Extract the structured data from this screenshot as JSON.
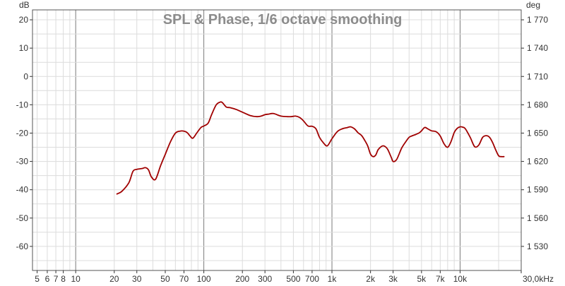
{
  "chart_data": {
    "type": "line",
    "title": "SPL & Phase, 1/6 octave smoothing",
    "y_unit_left": "dB",
    "y_unit_right": "deg",
    "x_scale": "log",
    "xlim": [
      4.6,
      30000
    ],
    "ylim": [
      -68.5,
      23.5
    ],
    "right_ylim": [
      1515.5,
      1791.5
    ],
    "x_ticks": [
      {
        "value": 5,
        "label": "5"
      },
      {
        "value": 6,
        "label": "6"
      },
      {
        "value": 7,
        "label": "7"
      },
      {
        "value": 8,
        "label": "8"
      },
      {
        "value": 10,
        "label": "10"
      },
      {
        "value": 20,
        "label": "20"
      },
      {
        "value": 30,
        "label": "30"
      },
      {
        "value": 50,
        "label": "50"
      },
      {
        "value": 70,
        "label": "70"
      },
      {
        "value": 100,
        "label": "100"
      },
      {
        "value": 200,
        "label": "200"
      },
      {
        "value": 300,
        "label": "300"
      },
      {
        "value": 500,
        "label": "500"
      },
      {
        "value": 700,
        "label": "700"
      },
      {
        "value": 1000,
        "label": "1k"
      },
      {
        "value": 2000,
        "label": "2k"
      },
      {
        "value": 3000,
        "label": "3k"
      },
      {
        "value": 5000,
        "label": "5k"
      },
      {
        "value": 7000,
        "label": "7k"
      },
      {
        "value": 10000,
        "label": "10k"
      },
      {
        "value": 30000,
        "label": "30,0kHz"
      }
    ],
    "y_ticks_left": [
      "20",
      "10",
      "0",
      "-10",
      "-20",
      "-30",
      "-40",
      "-50",
      "-60"
    ],
    "y_ticks_right": [
      "1 770",
      "1 740",
      "1 710",
      "1 680",
      "1 650",
      "1 620",
      "1 590",
      "1 560",
      "1 530"
    ],
    "grid": true,
    "colors": {
      "series": "#a00000",
      "grid": "#dcdcdc",
      "major_grid": "#7a7a7a",
      "axis": "#333333",
      "title": "#8c8c8c"
    },
    "series": [
      {
        "x": [
          21,
          23,
          26,
          28,
          30,
          33,
          35,
          37,
          39,
          42,
          46,
          50,
          55,
          60,
          65,
          70,
          74,
          78,
          82,
          88,
          95,
          100,
          108,
          115,
          125,
          135,
          140,
          150,
          160,
          180,
          200,
          230,
          260,
          280,
          300,
          320,
          350,
          400,
          450,
          480,
          520,
          560,
          600,
          650,
          700,
          750,
          800,
          860,
          920,
          1000,
          1100,
          1200,
          1300,
          1400,
          1500,
          1600,
          1700,
          1800,
          1900,
          2000,
          2100,
          2200,
          2300,
          2500,
          2700,
          2900,
          3000,
          3200,
          3500,
          3800,
          4000,
          4200,
          4500,
          4800,
          5000,
          5300,
          5600,
          6000,
          6500,
          7000,
          7500,
          8000,
          8500,
          9000,
          9500,
          10000,
          10500,
          11000,
          12000,
          13000,
          14000,
          15000,
          16000,
          17000,
          18000,
          19000,
          20000,
          21000,
          22000
        ],
        "y": [
          -41.5,
          -40.5,
          -37.5,
          -33.5,
          -32.8,
          -32.5,
          -32.2,
          -33,
          -35.5,
          -36.3,
          -31.5,
          -27.5,
          -23,
          -20,
          -19.3,
          -19.3,
          -19.8,
          -21,
          -21.8,
          -20,
          -18,
          -17.5,
          -16.5,
          -13.5,
          -10,
          -9,
          -9.3,
          -10.8,
          -11,
          -11.7,
          -12.6,
          -13.8,
          -14.2,
          -14,
          -13.5,
          -13.3,
          -13.1,
          -14,
          -14.2,
          -14.2,
          -14,
          -14.5,
          -15.7,
          -17.5,
          -17.6,
          -18.5,
          -21.5,
          -23.5,
          -24.5,
          -22,
          -19.5,
          -18.5,
          -18.1,
          -17.8,
          -18.5,
          -19.9,
          -20.8,
          -22.5,
          -24.5,
          -27.4,
          -28.3,
          -27.7,
          -25.8,
          -24.5,
          -25.5,
          -28.5,
          -30,
          -29.3,
          -25.3,
          -22.8,
          -21.5,
          -21,
          -20.5,
          -19.9,
          -19.2,
          -18,
          -18.5,
          -19.2,
          -19.5,
          -21,
          -23.8,
          -25,
          -23,
          -19.8,
          -18.3,
          -17.8,
          -17.9,
          -18.5,
          -21.5,
          -24.8,
          -24.2,
          -21.5,
          -20.9,
          -21.5,
          -23.5,
          -26,
          -28,
          -28.3,
          -28.3
        ]
      }
    ]
  }
}
